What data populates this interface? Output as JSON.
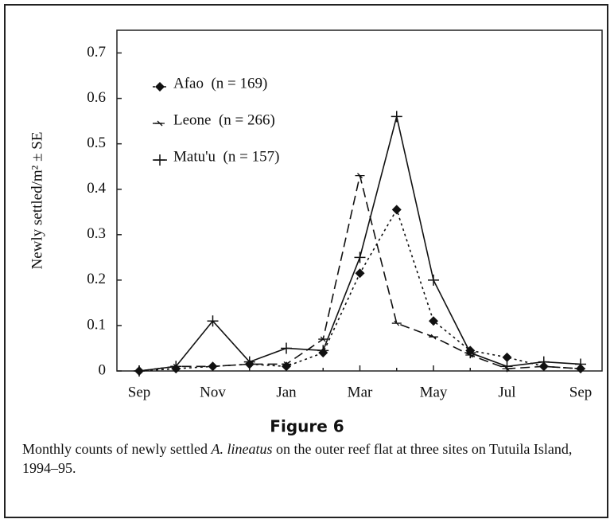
{
  "chart_data": {
    "type": "line",
    "title": "Figure 6",
    "caption": [
      "Monthly counts of newly settled ",
      "A. lineatus",
      " on the outer reef flat at three sites on Tutuila Island, 1994–95."
    ],
    "y_label": "Newly settled/m² ± SE",
    "categories": [
      "Sep",
      null,
      "Nov",
      null,
      "Jan",
      null,
      "Mar",
      null,
      "May",
      null,
      "Jul",
      null,
      "Sep"
    ],
    "series": [
      {
        "name": "Afao  (n = 169)",
        "color": "#111111",
        "style": "dotted",
        "marker": "diamond",
        "values": [
          0,
          0.005,
          0.01,
          0.015,
          0.01,
          0.04,
          0.215,
          0.355,
          0.11,
          0.045,
          0.03,
          0.01,
          0.005
        ]
      },
      {
        "name": "Leone  (n = 266)",
        "color": "#111111",
        "style": "dashed",
        "marker": "tick",
        "values": [
          0,
          0.01,
          0.01,
          0.015,
          0.015,
          0.07,
          0.43,
          0.105,
          0.075,
          0.035,
          0.005,
          0.01,
          0.005
        ]
      },
      {
        "name": "Matu'u  (n = 157)",
        "color": "#111111",
        "style": "solid",
        "marker": "plus",
        "values": [
          0,
          0.01,
          0.11,
          0.02,
          0.05,
          0.045,
          0.25,
          0.56,
          0.2,
          0.04,
          0.01,
          0.02,
          0.015
        ]
      }
    ],
    "ylim": [
      0,
      0.75
    ],
    "yticks": [
      0,
      0.1,
      0.2,
      0.3,
      0.4,
      0.5,
      0.6,
      0.7
    ],
    "legend": "upper left"
  }
}
